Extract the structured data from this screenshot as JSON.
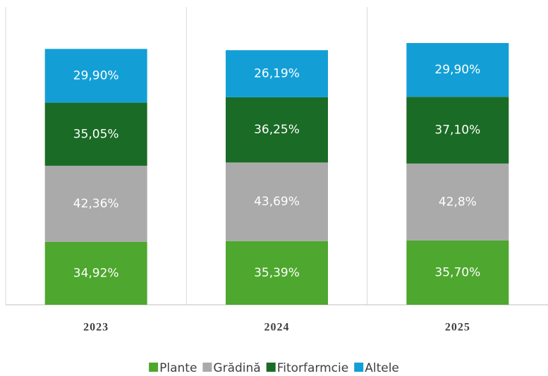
{
  "chart_data": {
    "type": "stacked_bar",
    "categories": [
      "2023",
      "2024",
      "2025"
    ],
    "series": [
      {
        "name": "Plante",
        "color": "#4ea72e",
        "values": [
          34.92,
          35.39,
          35.7
        ],
        "value_labels": [
          "34,92%",
          "35,39%",
          "35,70%"
        ]
      },
      {
        "name": "Grădină",
        "color": "#aaaaaa",
        "values": [
          42.36,
          43.69,
          42.8
        ],
        "value_labels": [
          "42,36%",
          "43,69%",
          "42,8%"
        ]
      },
      {
        "name": "Fitorfarmcie",
        "color": "#1a6b25",
        "values": [
          35.05,
          36.25,
          37.1
        ],
        "value_labels": [
          "35,05%",
          "36,25%",
          "37,10%"
        ]
      },
      {
        "name": "Altele",
        "color": "#139fd6",
        "values": [
          29.9,
          26.19,
          29.9
        ],
        "value_labels": [
          "29,90%",
          "26,19%",
          "29,90%"
        ]
      }
    ],
    "legend": "bottom"
  }
}
